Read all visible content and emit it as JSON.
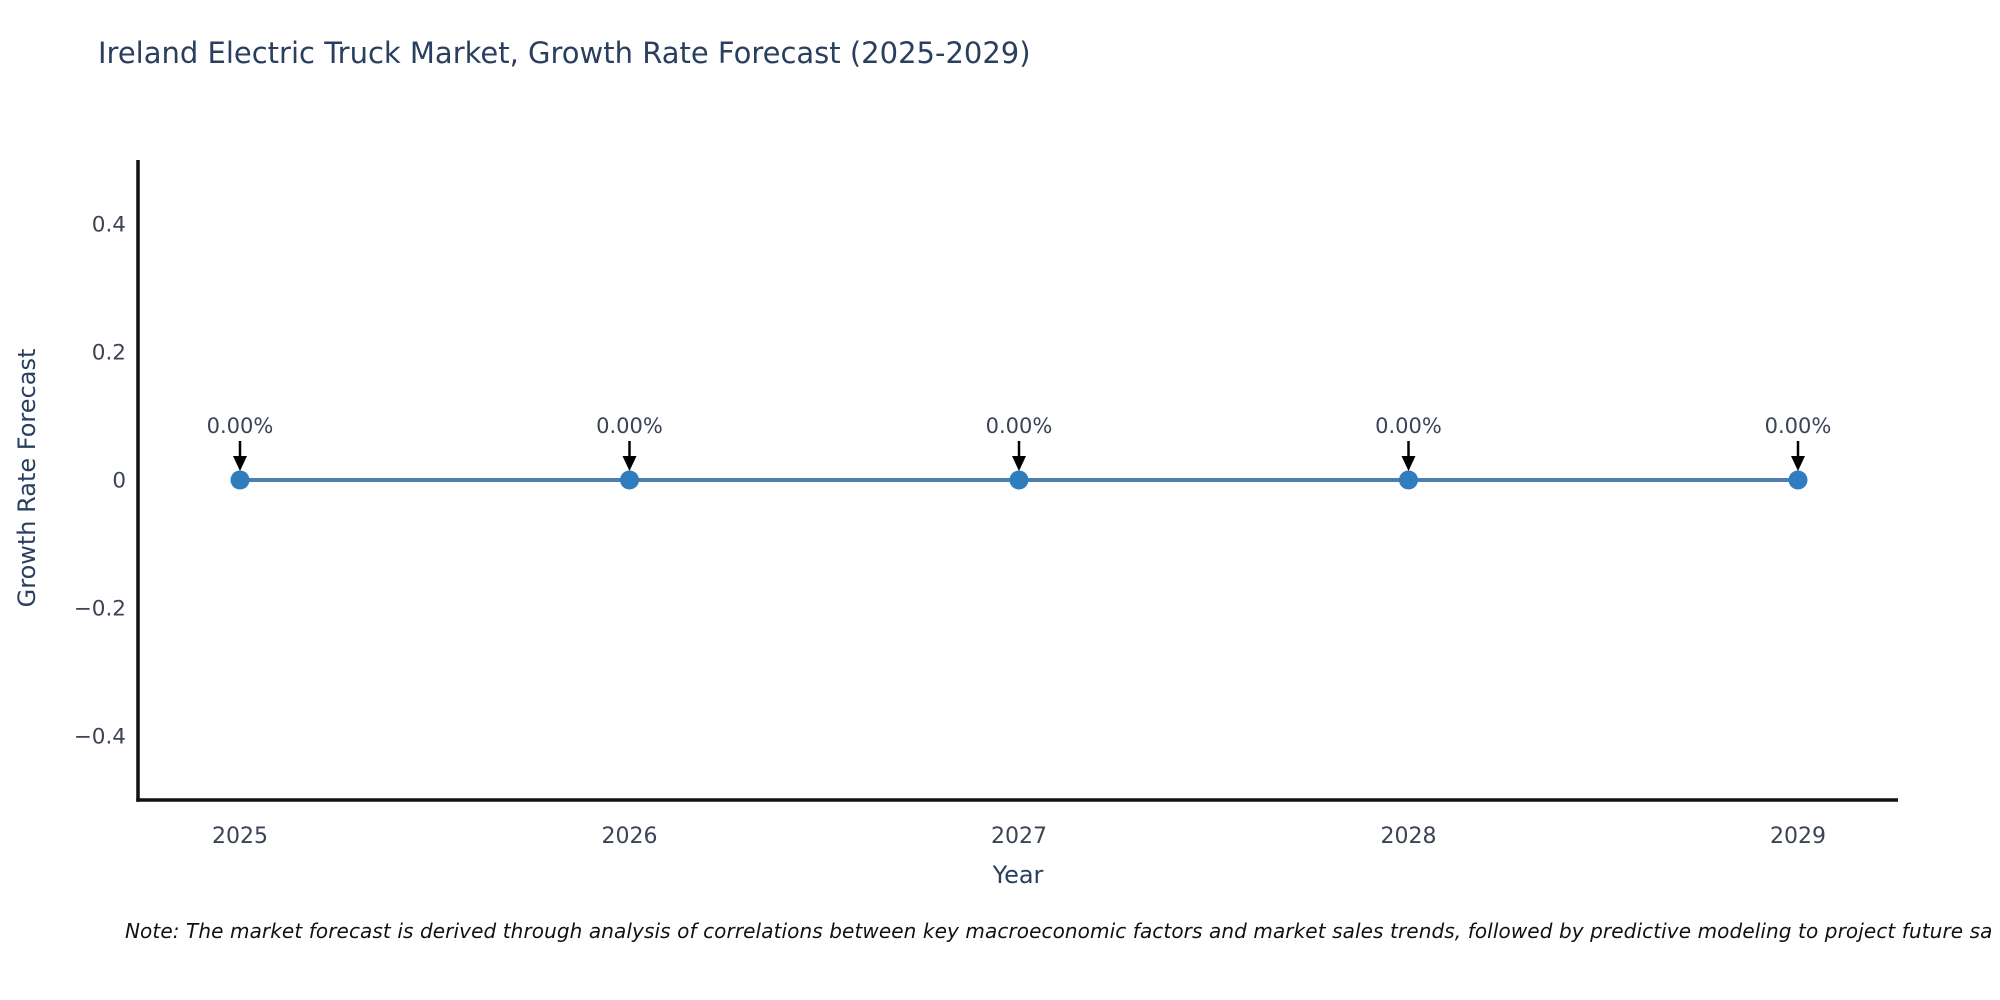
{
  "chart_data": {
    "type": "line",
    "title": "Ireland Electric Truck Market, Growth Rate Forecast (2025-2029)",
    "xlabel": "Year",
    "ylabel": "Growth Rate Forecast",
    "categories": [
      "2025",
      "2026",
      "2027",
      "2028",
      "2029"
    ],
    "series": [
      {
        "name": "Growth Rate Forecast",
        "values": [
          0,
          0,
          0,
          0,
          0
        ]
      }
    ],
    "point_labels": [
      "0.00%",
      "0.00%",
      "0.00%",
      "0.00%",
      "0.00%"
    ],
    "ylim": [
      -0.5,
      0.5
    ],
    "y_ticks": [
      {
        "value": 0.4,
        "label": "0.4"
      },
      {
        "value": 0.2,
        "label": "0.2"
      },
      {
        "value": 0,
        "label": "0"
      },
      {
        "value": -0.2,
        "label": "−0.2"
      },
      {
        "value": -0.4,
        "label": "−0.4"
      }
    ],
    "grid": false,
    "legend": "none",
    "colors": {
      "line": "#4f7eae",
      "marker": "#2e7dbe",
      "axis": "#111111",
      "title_text": "#2a3f5f",
      "tick_text": "#3b4455",
      "annotation_text": "#3b4455",
      "arrow": "#000000",
      "background": "#ffffff"
    }
  },
  "note": {
    "text": "Note: The market forecast is derived through analysis of correlations between key macroeconomic factors and market sales trends, followed by predictive modeling to project future sa"
  }
}
